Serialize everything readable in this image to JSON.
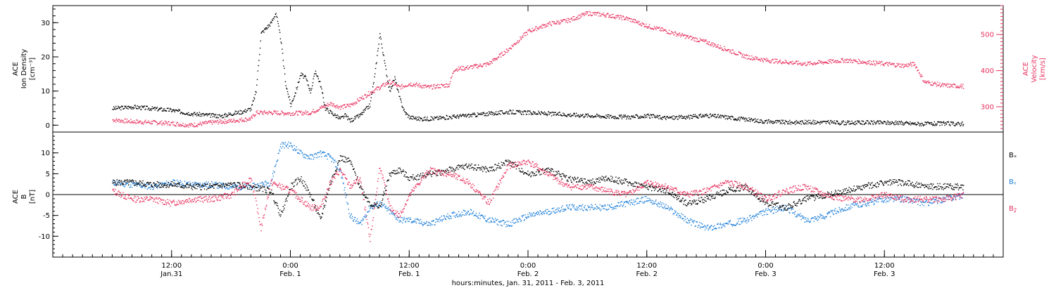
{
  "colors": {
    "black": "#000000",
    "blue": "#1e7fd8",
    "pink": "#e8325f"
  },
  "chart_data": [
    {
      "type": "scatter",
      "panel": "top",
      "ylabel_left": [
        "ACE",
        "Ion Density",
        "[cm⁻³]"
      ],
      "ylabel_right": [
        "ACE",
        "Velocity",
        "[km/s]"
      ],
      "ylim_left": [
        -2,
        35
      ],
      "ylim_right": [
        230,
        580
      ],
      "yticks_left": [
        0,
        10,
        20,
        30
      ],
      "yticks_right": [
        300,
        400,
        500
      ],
      "series": [
        {
          "color": "#000000",
          "axis": "left",
          "x": [
            0,
            2,
            4,
            6,
            8,
            10,
            11,
            12,
            13,
            14,
            14.5,
            15,
            16,
            16.5,
            17,
            17.5,
            18,
            18.5,
            19,
            19.5,
            20,
            20.5,
            21,
            21.5,
            22,
            22.5,
            23,
            23.5,
            24,
            25,
            26,
            26.5,
            27,
            27.5,
            28,
            28.5,
            29,
            29.5,
            30,
            31,
            32,
            34,
            36,
            38,
            40,
            42,
            44,
            46,
            48,
            50,
            52,
            54,
            56,
            58,
            60,
            62,
            64,
            66,
            68,
            70,
            72,
            74,
            76,
            78,
            80,
            82,
            84,
            86
          ],
          "y": [
            5,
            5.5,
            5,
            4.5,
            3.5,
            3,
            2.8,
            3.5,
            4,
            5,
            10,
            27,
            30,
            33,
            25,
            12,
            6,
            10,
            15,
            14,
            10,
            16,
            12,
            5,
            4,
            3,
            2,
            3,
            1.5,
            3,
            6,
            15,
            27,
            18,
            10,
            14,
            8,
            4,
            2.5,
            2,
            2,
            2.5,
            3,
            3.5,
            4,
            3.8,
            3.5,
            3.2,
            3,
            2.7,
            2.5,
            2.8,
            2.3,
            2.5,
            3,
            2.5,
            1.8,
            1.2,
            1,
            1,
            1,
            0.8,
            0.9,
            0.9,
            0.7,
            0.5,
            0.6,
            0.5
          ]
        },
        {
          "color": "#e8325f",
          "axis": "right",
          "x": [
            0,
            2,
            4,
            6,
            8,
            10,
            12,
            14,
            14.5,
            16,
            18,
            20,
            22,
            23,
            24,
            26,
            28,
            29,
            30,
            32,
            34,
            34.5,
            36,
            38,
            40,
            42,
            44,
            46,
            48,
            50,
            52,
            54,
            56,
            58,
            60,
            62,
            64,
            66,
            68,
            70,
            72,
            74,
            76,
            78,
            80,
            81,
            82,
            84,
            86
          ],
          "y": [
            265,
            260,
            258,
            255,
            250,
            258,
            262,
            268,
            285,
            285,
            283,
            285,
            310,
            300,
            305,
            340,
            370,
            355,
            365,
            355,
            362,
            405,
            410,
            420,
            460,
            510,
            530,
            540,
            560,
            555,
            545,
            525,
            510,
            495,
            480,
            460,
            440,
            430,
            425,
            420,
            425,
            430,
            425,
            420,
            415,
            420,
            370,
            360,
            358
          ]
        }
      ]
    },
    {
      "type": "scatter",
      "panel": "bottom",
      "ylabel_left": [
        "ACE",
        "B",
        "[nT]"
      ],
      "ylim": [
        -15,
        15
      ],
      "yticks": [
        -10,
        -5,
        0,
        5,
        10
      ],
      "legend": [
        {
          "label": "Bₓ",
          "color": "#000000"
        },
        {
          "label": "Bᵧ",
          "color": "#1e7fd8"
        },
        {
          "label": "B𝓏",
          "color": "#e8325f"
        }
      ],
      "series": [
        {
          "name": "Bₓ",
          "color": "#000000",
          "x": [
            0,
            2,
            4,
            6,
            8,
            10,
            12,
            14,
            16,
            17,
            18,
            19,
            20,
            21,
            22,
            23,
            24,
            25,
            26,
            27,
            28,
            29,
            30,
            32,
            34,
            36,
            38,
            40,
            42,
            44,
            46,
            48,
            50,
            52,
            54,
            56,
            58,
            60,
            62,
            64,
            66,
            68,
            70,
            72,
            74,
            76,
            78,
            80,
            82,
            84,
            86
          ],
          "y": [
            3,
            3,
            2.5,
            2.5,
            2,
            2,
            2.5,
            2,
            1,
            -5,
            2,
            4,
            0,
            -6,
            3,
            9,
            8,
            2,
            -2,
            -3,
            5,
            6,
            4,
            5,
            6,
            7,
            6,
            8,
            5,
            6,
            4,
            3,
            4,
            3,
            2,
            1,
            -2,
            -1,
            1,
            2,
            -2,
            -3,
            -1,
            0,
            1,
            2,
            3,
            3,
            2,
            2,
            2
          ]
        },
        {
          "name": "Bᵧ",
          "color": "#1e7fd8",
          "x": [
            0,
            2,
            4,
            6,
            8,
            10,
            12,
            14,
            16,
            17,
            18,
            19,
            20,
            21,
            22,
            23,
            24,
            25,
            26,
            27,
            28,
            29,
            30,
            32,
            34,
            36,
            38,
            40,
            42,
            44,
            46,
            48,
            50,
            52,
            54,
            56,
            58,
            60,
            62,
            64,
            66,
            68,
            70,
            72,
            74,
            76,
            78,
            80,
            82,
            84,
            86
          ],
          "y": [
            3,
            2.5,
            2,
            3,
            2.5,
            2.5,
            2,
            2,
            3,
            12,
            12,
            10,
            9,
            10,
            9,
            6,
            -5,
            -7,
            -3,
            -2,
            -4,
            -6,
            -6,
            -7,
            -5,
            -4,
            -6,
            -7,
            -5,
            -4,
            -3,
            -3,
            -3,
            -2,
            -1,
            -3,
            -6,
            -8,
            -7,
            -6,
            -4,
            -3,
            -6,
            -5,
            -3,
            -2,
            -1,
            -1,
            -2,
            -1,
            0
          ]
        },
        {
          "name": "B𝓏",
          "color": "#e8325f",
          "x": [
            0,
            2,
            4,
            6,
            8,
            10,
            12,
            14,
            15,
            16,
            17,
            18,
            19,
            20,
            21,
            22,
            23,
            24,
            25,
            26,
            27,
            28,
            29,
            30,
            32,
            34,
            36,
            38,
            40,
            42,
            44,
            46,
            48,
            50,
            52,
            54,
            56,
            58,
            60,
            62,
            64,
            66,
            68,
            70,
            72,
            74,
            76,
            78,
            80,
            82,
            84,
            86
          ],
          "y": [
            1,
            -1,
            -1,
            -2,
            -1,
            -1,
            0,
            4,
            -8,
            3,
            2,
            1,
            -1,
            -3,
            -3,
            3,
            6,
            2,
            4,
            -11,
            7,
            -3,
            -5,
            0,
            6,
            5,
            3,
            -2,
            7,
            8,
            5,
            2,
            2,
            1,
            0,
            3,
            2,
            0,
            1,
            3,
            2,
            -1,
            1,
            2,
            0,
            -1,
            -1,
            0,
            -1,
            -1,
            -1,
            0
          ]
        }
      ]
    }
  ],
  "x_axis": {
    "x_min": -6,
    "x_max": 90,
    "ticks": [
      {
        "x": 6,
        "line1": "12:00",
        "line2": "Jan.31"
      },
      {
        "x": 18,
        "line1": "0:00",
        "line2": "Feb. 1"
      },
      {
        "x": 30,
        "line1": "12:00",
        "line2": "Feb. 1"
      },
      {
        "x": 42,
        "line1": "0:00",
        "line2": "Feb. 2"
      },
      {
        "x": 54,
        "line1": "12:00",
        "line2": "Feb. 2"
      },
      {
        "x": 66,
        "line1": "0:00",
        "line2": "Feb. 3"
      },
      {
        "x": 78,
        "line1": "12:00",
        "line2": "Feb. 3"
      }
    ],
    "xlabel": "hours:minutes, Jan. 31, 2011 - Feb. 3, 2011"
  }
}
